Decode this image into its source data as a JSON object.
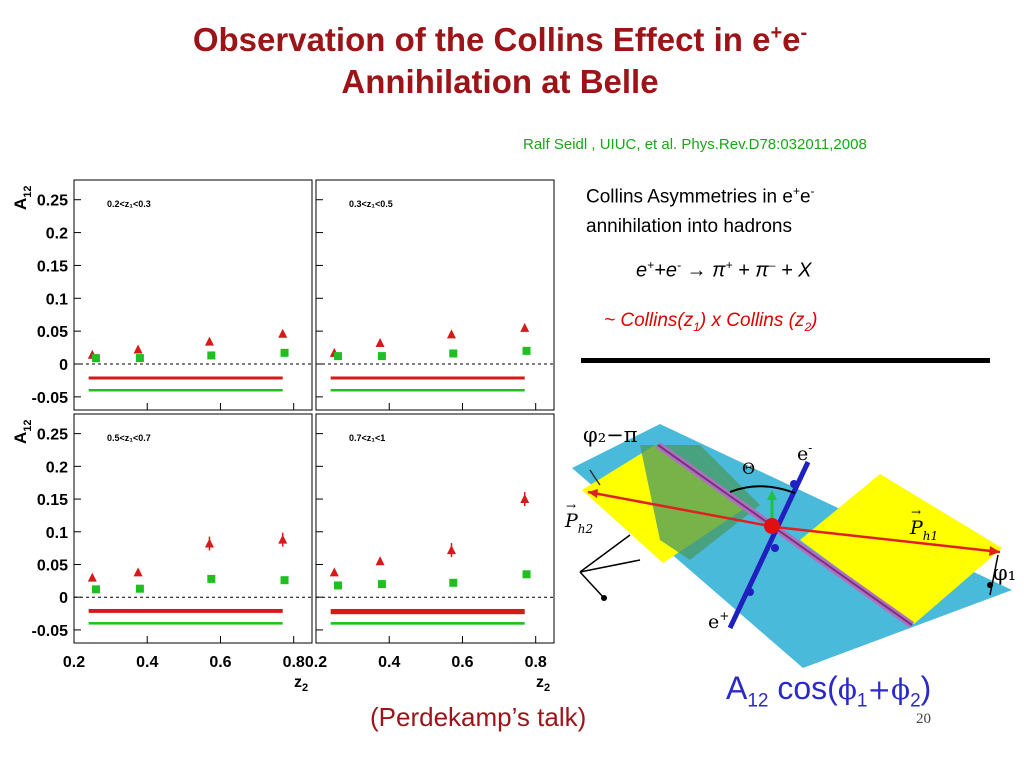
{
  "slide": {
    "title_line1": "Observation of the Collins Effect in  e",
    "title_sup1": "+",
    "title_e2": "e",
    "title_sup2": "-",
    "title_line2": "Annihilation at Belle",
    "citation": "Ralf Seidl , UIUC,  et al. Phys.Rev.D78:032011,2008",
    "desc_line1_pre": "Collins Asymmetries in e",
    "desc_sup1": "+",
    "desc_e": "e",
    "desc_sup2": "-",
    "desc_line2": "annihilation into hadrons",
    "reaction": {
      "e1": "e",
      "s1": "+",
      "plus1": "+e",
      "s2": "-",
      "arrow": " → ",
      "pi1": "π",
      "s3": "+",
      "mid": " + π",
      "s4": "–",
      "end": "  + X"
    },
    "collins": {
      "pre": "~ Collins(z",
      "sub1": "1",
      "mid": ") x Collins (z",
      "sub2": "2",
      "end": ")"
    },
    "talk": "(Perdekamp’s talk)",
    "formula": {
      "a": "A",
      "sub": "12",
      "cos": " cos(",
      "phi1": "ϕ",
      "s1": "1",
      "plus": "+",
      "phi2": "ϕ",
      "s2": "2",
      "close": ")"
    },
    "page_number": "20",
    "colors": {
      "title": "#9c1418",
      "citation": "#1aa51a",
      "collins": "#e00000",
      "formula": "#2a2acc"
    }
  },
  "diagram": {
    "label_phi2": "φ₂−π",
    "label_theta": "Θ",
    "label_eminus": "e",
    "label_eminus_sup": "-",
    "label_eplus": "e",
    "label_eplus_sup": "+",
    "label_p1": "P",
    "label_p1_sub": "h1",
    "label_p2": "P",
    "label_p2_sub": "h2",
    "label_phi1": "φ₁",
    "colors": {
      "plane": "#3bb4d8",
      "hadron_plane": "#ffff00",
      "beam": "#2020c0",
      "momentum": "#e02020"
    }
  },
  "chart_data": {
    "type": "scatter",
    "ylabel": "A",
    "ylabel_sub": "12",
    "xlabel": "z",
    "xlabel_sub": "2",
    "xlim": [
      0.2,
      0.85
    ],
    "ylim": [
      -0.07,
      0.28
    ],
    "yticks": [
      "0.25",
      "0.2",
      "0.15",
      "0.1",
      "0.05",
      "0",
      "-0.05"
    ],
    "xticks": [
      "0.2",
      "0.4",
      "0.6",
      "0.8"
    ],
    "series_colors": {
      "triangles": "#d61a1a",
      "squares": "#1fbf1f"
    },
    "panels": [
      {
        "label": "0.2<z₁<0.3",
        "triangles": [
          [
            0.25,
            0.014
          ],
          [
            0.375,
            0.022
          ],
          [
            0.57,
            0.034
          ],
          [
            0.77,
            0.046
          ]
        ],
        "squares": [
          [
            0.26,
            0.009
          ],
          [
            0.38,
            0.009
          ],
          [
            0.575,
            0.013
          ],
          [
            0.775,
            0.017
          ]
        ],
        "red_band": [
          -0.019,
          -0.023
        ],
        "green_band": [
          -0.038,
          -0.041
        ]
      },
      {
        "label": "0.3<z₁<0.5",
        "triangles": [
          [
            0.25,
            0.017
          ],
          [
            0.375,
            0.032
          ],
          [
            0.57,
            0.045
          ],
          [
            0.77,
            0.055
          ]
        ],
        "squares": [
          [
            0.26,
            0.012
          ],
          [
            0.38,
            0.012
          ],
          [
            0.575,
            0.016
          ],
          [
            0.775,
            0.02
          ]
        ],
        "red_band": [
          -0.019,
          -0.023
        ],
        "green_band": [
          -0.038,
          -0.041
        ]
      },
      {
        "label": "0.5<z₁<0.7",
        "triangles": [
          [
            0.25,
            0.03
          ],
          [
            0.375,
            0.038
          ],
          [
            0.57,
            0.082
          ],
          [
            0.77,
            0.088
          ]
        ],
        "squares": [
          [
            0.26,
            0.012
          ],
          [
            0.38,
            0.013
          ],
          [
            0.575,
            0.028
          ],
          [
            0.775,
            0.026
          ]
        ],
        "red_band": [
          -0.018,
          -0.024
        ],
        "green_band": [
          -0.038,
          -0.041
        ]
      },
      {
        "label": "0.7<z₁<1",
        "triangles": [
          [
            0.25,
            0.038
          ],
          [
            0.375,
            0.055
          ],
          [
            0.57,
            0.072
          ],
          [
            0.77,
            0.15
          ]
        ],
        "squares": [
          [
            0.26,
            0.018
          ],
          [
            0.38,
            0.02
          ],
          [
            0.575,
            0.022
          ],
          [
            0.775,
            0.035
          ]
        ],
        "red_band": [
          -0.018,
          -0.026
        ],
        "green_band": [
          -0.038,
          -0.042
        ]
      }
    ]
  }
}
